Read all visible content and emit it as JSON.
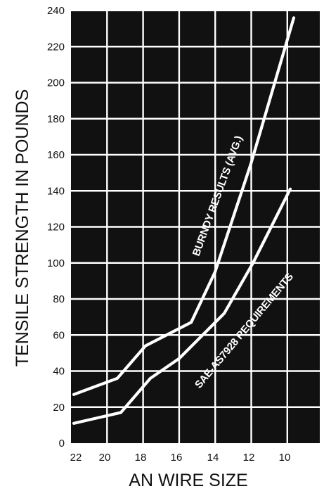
{
  "chart_data": {
    "type": "line",
    "xlabel": "AN WIRE SIZE",
    "ylabel": "TENSILE STRENGTH IN POUNDS",
    "x_ticks": [
      "22",
      "20",
      "18",
      "16",
      "14",
      "12",
      "10"
    ],
    "y_ticks": [
      "0",
      "20",
      "40",
      "60",
      "80",
      "100",
      "120",
      "140",
      "160",
      "180",
      "200",
      "220",
      "240"
    ],
    "ylim": [
      0,
      240
    ],
    "grid": true,
    "background_color": "#111111",
    "grid_color": "#ffffff",
    "line_color": "#ffffff",
    "series": [
      {
        "name": "BURNDY RESULTS (AVG.)",
        "x": [
          22,
          20,
          18,
          16,
          14,
          12,
          10
        ],
        "values": [
          27,
          36,
          54,
          67,
          95,
          155,
          236
        ]
      },
      {
        "name": "SAE-AS7928 REQUIREMENTS",
        "x": [
          22,
          20,
          18,
          16,
          14,
          12,
          10
        ],
        "values": [
          11,
          17,
          36,
          47,
          72,
          100,
          141
        ]
      }
    ]
  }
}
